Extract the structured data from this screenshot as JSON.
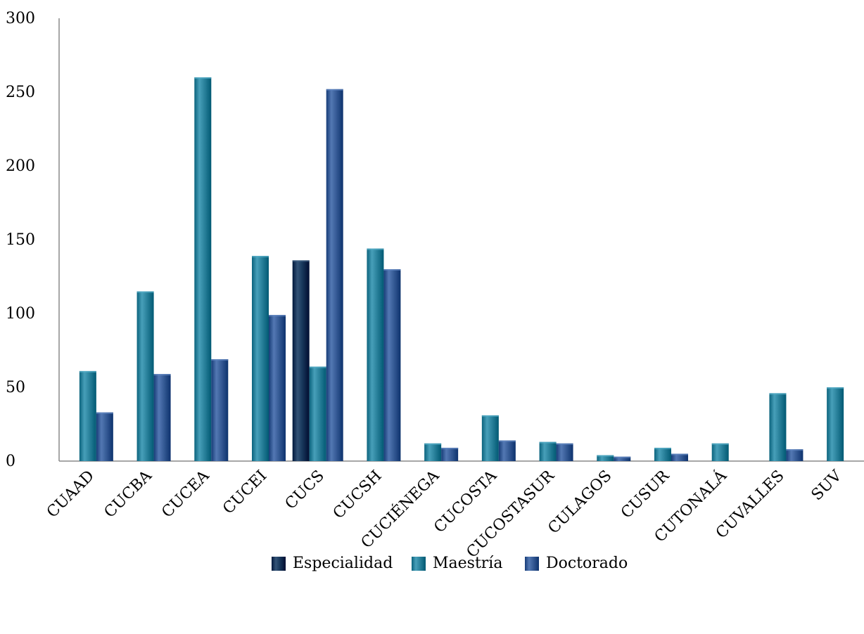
{
  "chart_data": {
    "type": "bar",
    "categories": [
      "CUAAD",
      "CUCBA",
      "CUCEA",
      "CUCEI",
      "CUCS",
      "CUCSH",
      "CUCIÉNEGA",
      "CUCOSTA",
      "CUCOSTASUR",
      "CULAGOS",
      "CUSUR",
      "CUTONALÁ",
      "CUVALLES",
      "SUV"
    ],
    "series": [
      {
        "name": "Especialidad",
        "color": "#1a3a5e",
        "values": [
          0,
          0,
          0,
          0,
          136,
          0,
          0,
          0,
          0,
          0,
          0,
          0,
          0,
          0
        ]
      },
      {
        "name": "Maestría",
        "color": "#2e86a0",
        "values": [
          61,
          115,
          260,
          139,
          64,
          144,
          12,
          31,
          13,
          4,
          9,
          12,
          46,
          50
        ]
      },
      {
        "name": "Doctorado",
        "color": "#3a5f9a",
        "values": [
          33,
          59,
          69,
          99,
          252,
          130,
          9,
          14,
          12,
          3,
          5,
          0,
          8,
          0
        ]
      }
    ],
    "yticks": [
      "0",
      "50",
      "100",
      "150",
      "200",
      "250",
      "300"
    ],
    "ylim": [
      0,
      300
    ],
    "xlabel": "",
    "ylabel": "",
    "title": "",
    "grid": false,
    "legend_position": "bottom-center"
  }
}
